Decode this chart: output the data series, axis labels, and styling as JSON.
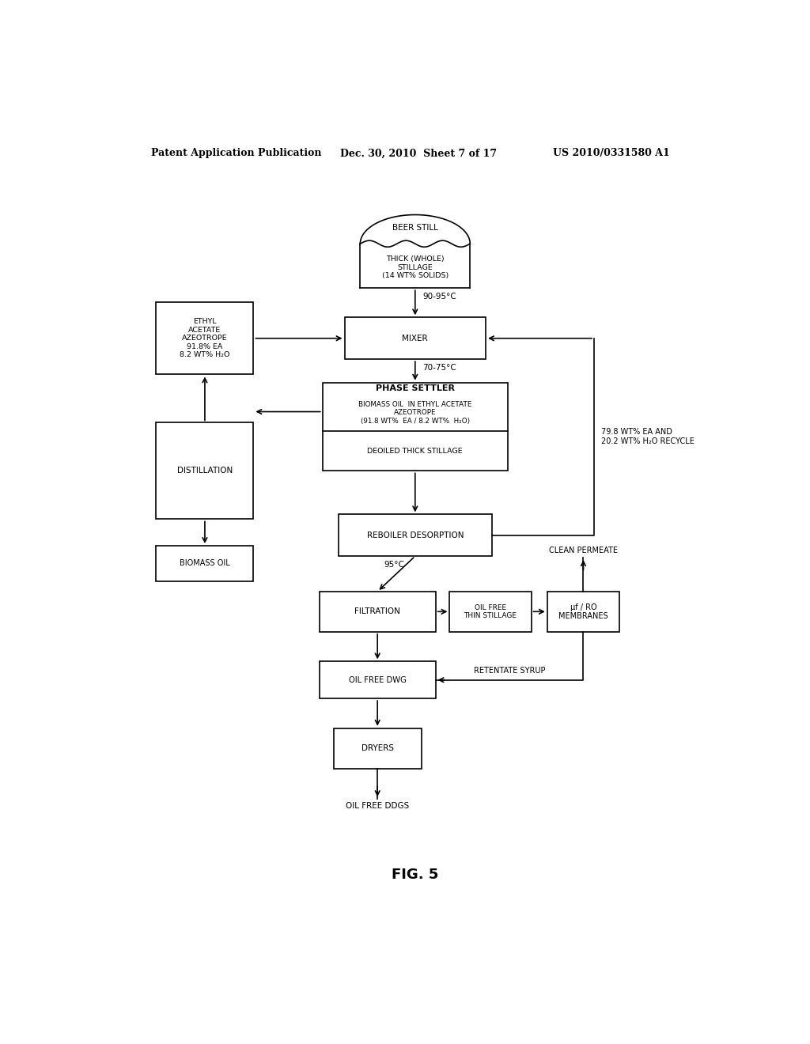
{
  "bg_color": "#ffffff",
  "header_left": "Patent Application Publication",
  "header_mid": "Dec. 30, 2010  Sheet 7 of 17",
  "header_right": "US 2010/0331580 A1",
  "fig_label": "FIG. 5"
}
